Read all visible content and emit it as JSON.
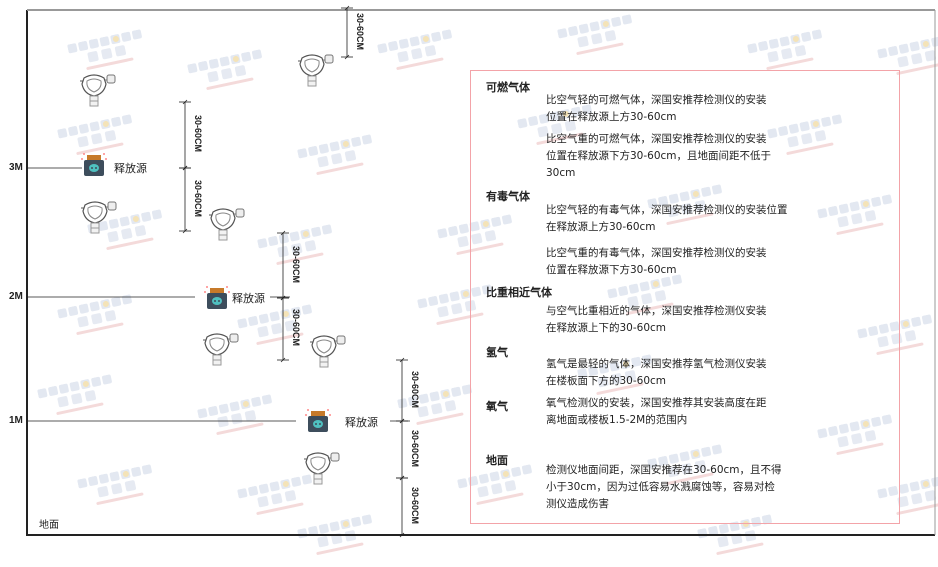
{
  "watermark": {
    "brand": "SINGOAN",
    "cn": "深国安",
    "sub": "服务代码:661434"
  },
  "levels": {
    "m3": "3M",
    "m2": "2M",
    "m1": "1M",
    "ground": "地面"
  },
  "source_label": "释放源",
  "dim_label": "30-60CM",
  "panel": {
    "sections": [
      {
        "heading": "可燃气体",
        "paragraphs": [
          "比空气轻的可燃气体，深国安推荐检测仪的安装\n位置在释放源上方30-60cm",
          "比空气重的可燃气体，深国安推荐检测仪的安装\n位置在释放源下方30-60cm，且地面间距不低于\n30cm"
        ]
      },
      {
        "heading": "有毒气体",
        "paragraphs": [
          "比空气轻的有毒气体，深国安推荐检测仪的安装位置\n在释放源上方30-60cm",
          "比空气重的有毒气体，深国安推荐检测仪的安装\n位置在释放源下方30-60cm"
        ]
      },
      {
        "heading": "比重相近气体",
        "paragraphs": [
          "与空气比重相近的气体，深国安推荐检测仪安装\n在释放源上下的30-60cm"
        ]
      },
      {
        "heading": "氢气",
        "paragraphs": [
          "氢气是最轻的气体，深国安推荐氢气检测仪安装\n在楼板面下方的30-60cm"
        ]
      },
      {
        "heading": "氧气",
        "paragraphs": [
          "氧气检测仪的安装，深国安推荐其安装高度在距\n离地面或楼板1.5-2M的范围内"
        ]
      },
      {
        "heading": "地面",
        "paragraphs": [
          "检测仪地面间距，深国安推荐在30-60cm，且不得\n小于30cm，因为过低容易水溅腐蚀等，容易对检\n测仪造成伤害"
        ]
      }
    ]
  }
}
